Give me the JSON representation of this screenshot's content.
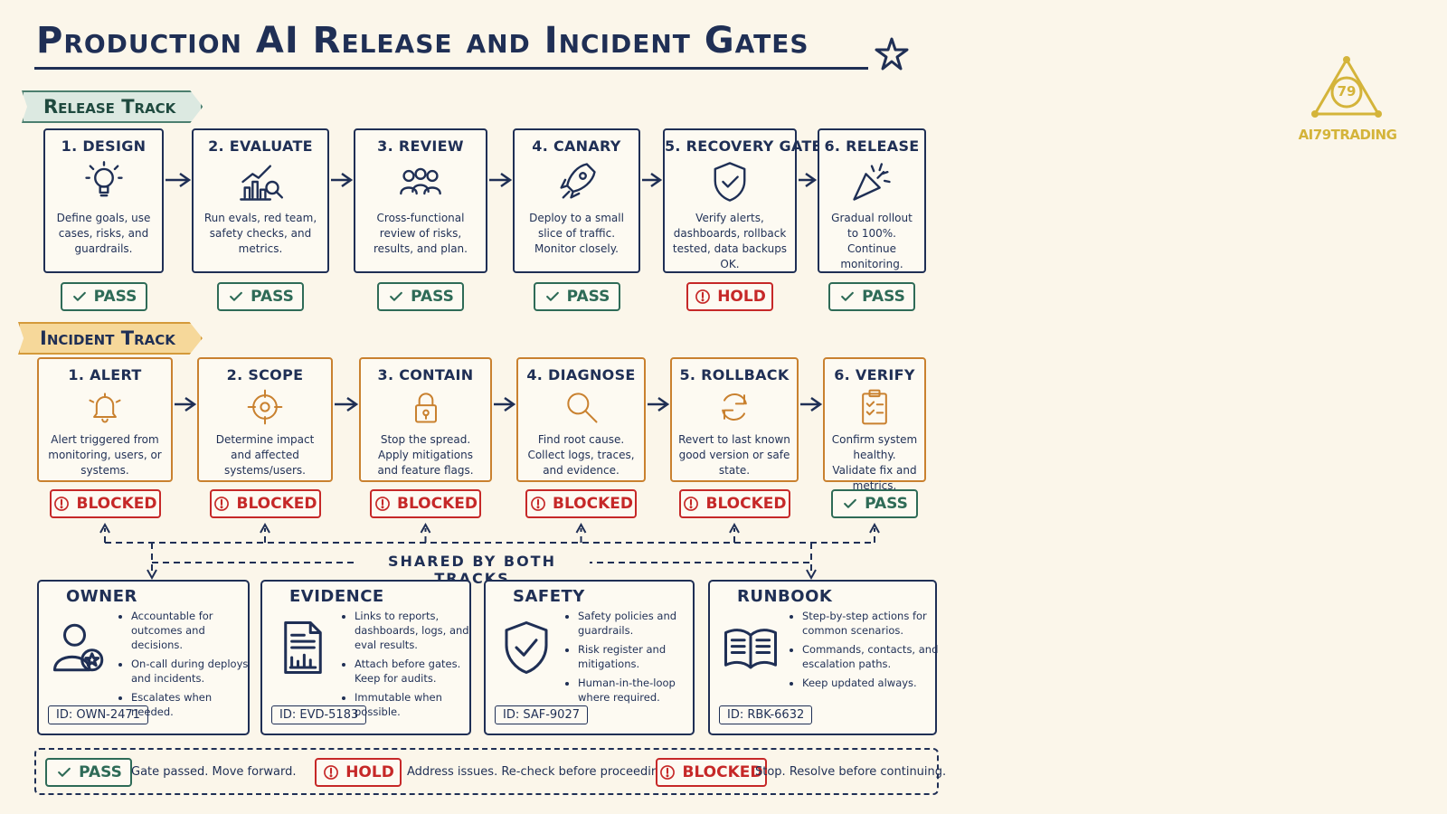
{
  "title": "Production AI Release and Incident Gates",
  "logo": {
    "mark": "79",
    "name": "AI79TRADING"
  },
  "release_track": {
    "label": "Release Track",
    "steps": [
      {
        "title": "1. DESIGN",
        "description": "Define goals, use cases, risks, and guardrails.",
        "status": "PASS"
      },
      {
        "title": "2. EVALUATE",
        "description": "Run evals, red team, safety checks, and metrics.",
        "status": "PASS"
      },
      {
        "title": "3. REVIEW",
        "description": "Cross-functional review of risks, results, and plan.",
        "status": "PASS"
      },
      {
        "title": "4. CANARY",
        "description": "Deploy to a small slice of traffic. Monitor closely.",
        "status": "PASS"
      },
      {
        "title": "5. RECOVERY GATE",
        "description": "Verify alerts, dashboards, rollback tested, data backups OK.",
        "status": "HOLD"
      },
      {
        "title": "6. RELEASE",
        "description": "Gradual rollout to 100%. Continue monitoring.",
        "status": "PASS"
      }
    ]
  },
  "incident_track": {
    "label": "Incident Track",
    "steps": [
      {
        "title": "1. ALERT",
        "description": "Alert triggered from monitoring, users, or systems.",
        "status": "BLOCKED"
      },
      {
        "title": "2. SCOPE",
        "description": "Determine impact and affected systems/users.",
        "status": "BLOCKED"
      },
      {
        "title": "3. CONTAIN",
        "description": "Stop the spread. Apply mitigations and feature flags.",
        "status": "BLOCKED"
      },
      {
        "title": "4. DIAGNOSE",
        "description": "Find root cause. Collect logs, traces, and evidence.",
        "status": "BLOCKED"
      },
      {
        "title": "5. ROLLBACK",
        "description": "Revert to last known good version or safe state.",
        "status": "BLOCKED"
      },
      {
        "title": "6. VERIFY",
        "description": "Confirm system healthy. Validate fix and metrics.",
        "status": "PASS"
      }
    ]
  },
  "shared": {
    "label": "SHARED BY BOTH TRACKS",
    "cards": [
      {
        "title": "OWNER",
        "bullets": [
          "Accountable for outcomes and decisions.",
          "On-call during deploys and incidents.",
          "Escalates when needed."
        ],
        "id": "ID: OWN-2471"
      },
      {
        "title": "EVIDENCE",
        "bullets": [
          "Links to reports, dashboards, logs, and eval results.",
          "Attach before gates. Keep for audits.",
          "Immutable when possible."
        ],
        "id": "ID: EVD-5183"
      },
      {
        "title": "SAFETY",
        "bullets": [
          "Safety policies and guardrails.",
          "Risk register and mitigations.",
          "Human-in-the-loop where required."
        ],
        "id": "ID: SAF-9027"
      },
      {
        "title": "RUNBOOK",
        "bullets": [
          "Step-by-step actions for common scenarios.",
          "Commands, contacts, and escalation paths.",
          "Keep updated always."
        ],
        "id": "ID: RBK-6632"
      }
    ]
  },
  "legend": [
    {
      "status": "PASS",
      "color": "#2e6b57",
      "text": "Gate passed. Move forward."
    },
    {
      "status": "HOLD",
      "color": "#c62828",
      "text": "Address issues. Re-check before proceeding."
    },
    {
      "status": "BLOCKED",
      "color": "#c62828",
      "text": "Stop. Resolve before continuing."
    }
  ]
}
